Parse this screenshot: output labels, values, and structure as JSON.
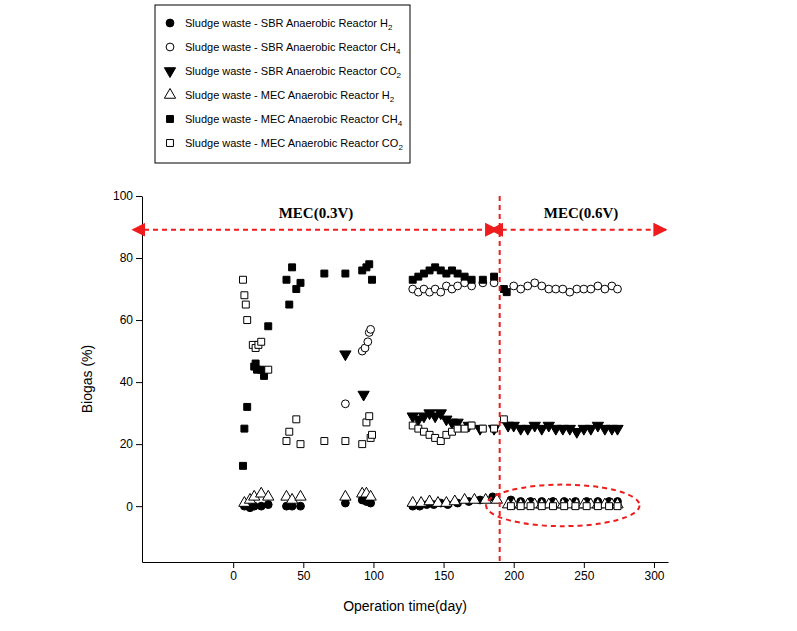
{
  "chart_data": {
    "type": "scatter",
    "x_label": "Operation time(day)",
    "y_label": "Biogas (%)",
    "xlim": [
      -65,
      310
    ],
    "ylim": [
      -18,
      100
    ],
    "xticks": [
      0,
      50,
      100,
      150,
      200,
      250,
      300
    ],
    "yticks": [
      0,
      20,
      40,
      60,
      80,
      100
    ],
    "grid": false,
    "legend": "top-left",
    "annotations": [
      {
        "text": "MEC(0.3V)",
        "x": 59,
        "y": 93
      },
      {
        "text": "MEC(0.6V)",
        "x": 248,
        "y": 93
      }
    ],
    "reference_lines": [
      {
        "x": 190
      }
    ],
    "series": [
      {
        "name": "Sludge waste - SBR Anaerobic Reactor H2",
        "color": "#000000",
        "marker": "circle",
        "x": [
          8,
          12,
          15,
          20,
          25,
          38,
          42,
          48,
          80,
          92,
          95,
          98,
          128,
          133,
          138,
          143,
          148,
          153,
          160,
          168,
          176,
          185,
          198,
          205,
          212,
          220,
          228,
          236,
          244,
          252,
          260,
          268,
          274
        ],
        "values": [
          0,
          -0.5,
          0,
          0,
          0.5,
          0,
          0,
          0,
          1,
          2,
          1.5,
          1,
          0,
          0,
          0.5,
          0.5,
          1,
          0.5,
          1,
          1.5,
          2,
          3,
          2,
          1.5,
          1.5,
          1.5,
          1.5,
          1.5,
          1.5,
          1.5,
          1.5,
          1.5,
          1.5
        ]
      },
      {
        "name": "Sludge waste - SBR Anaerobic Reactor CH4",
        "color": "#000000",
        "marker": "open-circle",
        "x": [
          80,
          92,
          94,
          96,
          97,
          98,
          128,
          132,
          136,
          140,
          144,
          148,
          152,
          156,
          160,
          165,
          170,
          178,
          186,
          200,
          205,
          210,
          215,
          220,
          225,
          230,
          235,
          240,
          245,
          250,
          255,
          260,
          265,
          270,
          274
        ],
        "values": [
          33,
          50,
          51,
          53,
          56,
          57,
          70,
          69,
          70,
          69,
          70,
          69,
          71,
          70,
          71,
          72,
          71,
          72,
          72,
          71,
          70,
          71,
          72,
          71,
          70,
          70,
          70,
          69,
          70,
          70,
          70,
          71,
          70,
          71,
          70
        ]
      },
      {
        "name": "Sludge waste - SBR Anaerobic Reactor CO2",
        "color": "#000000",
        "marker": "triangle-down",
        "x": [
          80,
          93,
          128,
          132,
          136,
          140,
          144,
          148,
          152,
          156,
          160,
          168,
          176,
          186,
          196,
          200,
          205,
          210,
          215,
          220,
          225,
          230,
          235,
          240,
          245,
          250,
          255,
          260,
          265,
          270,
          274
        ],
        "values": [
          49,
          36,
          29,
          28,
          29,
          30,
          29,
          30,
          28,
          27,
          27,
          26,
          25,
          25,
          26,
          26,
          25,
          25,
          26,
          25,
          26,
          25,
          25,
          25,
          24,
          25,
          25,
          26,
          25,
          25,
          25
        ]
      },
      {
        "name": "Sludge waste - MEC Anaerobic Reactor H2",
        "color": "#000000",
        "marker": "open-triangle",
        "x": [
          8,
          12,
          15,
          20,
          25,
          38,
          42,
          48,
          80,
          92,
          95,
          98,
          128,
          134,
          140,
          146,
          152,
          158,
          165,
          172,
          180,
          188,
          196,
          200,
          205,
          210,
          215,
          220,
          225,
          230,
          235,
          240,
          245,
          250,
          255,
          260,
          265,
          270,
          274
        ],
        "values": [
          1,
          2,
          3,
          4,
          3,
          3,
          2,
          3,
          3,
          4,
          4,
          3,
          1,
          1,
          1.5,
          1,
          1,
          1.5,
          2,
          2,
          2,
          2,
          0.5,
          0.5,
          0.5,
          0.5,
          0.5,
          0.5,
          0.5,
          0.5,
          0.5,
          0.5,
          0.5,
          0.5,
          0.5,
          0.5,
          0.5,
          0.5,
          0.5
        ]
      },
      {
        "name": "Sludge waste - MEC Anaerobic Reactor CH4",
        "color": "#000000",
        "marker": "square",
        "x": [
          7,
          8,
          10,
          15,
          16,
          17,
          20,
          22,
          25,
          38,
          40,
          42,
          45,
          48,
          65,
          80,
          92,
          95,
          97,
          99,
          128,
          132,
          136,
          140,
          144,
          148,
          152,
          156,
          160,
          165,
          170,
          178,
          186,
          193,
          195
        ],
        "values": [
          13,
          25,
          32,
          45,
          46,
          44,
          44,
          42,
          58,
          73,
          65,
          77,
          70,
          72,
          75,
          75,
          76,
          77,
          78,
          73,
          73,
          74,
          75,
          76,
          77,
          76,
          75,
          76,
          75,
          74,
          73,
          73,
          74,
          70,
          69
        ]
      },
      {
        "name": "Sludge waste - MEC Anaerobic Reactor CO2",
        "color": "#000000",
        "marker": "open-square",
        "x": [
          7,
          8,
          9,
          10,
          14,
          16,
          18,
          20,
          25,
          38,
          40,
          45,
          48,
          65,
          80,
          92,
          95,
          97,
          98,
          99,
          128,
          132,
          136,
          140,
          144,
          148,
          152,
          156,
          160,
          165,
          170,
          178,
          186,
          193,
          198,
          205,
          212,
          220,
          228,
          236,
          244,
          252,
          260,
          268,
          274
        ],
        "values": [
          73,
          68,
          65,
          60,
          52,
          51,
          52,
          53,
          44,
          21,
          24,
          28,
          20,
          21,
          21,
          20,
          27,
          29,
          22,
          23,
          26,
          25,
          24,
          23,
          22,
          21,
          23,
          24,
          25,
          25,
          26,
          25,
          25,
          28,
          0,
          0,
          0,
          0,
          0,
          0,
          0,
          0,
          0,
          0,
          0
        ]
      }
    ]
  }
}
